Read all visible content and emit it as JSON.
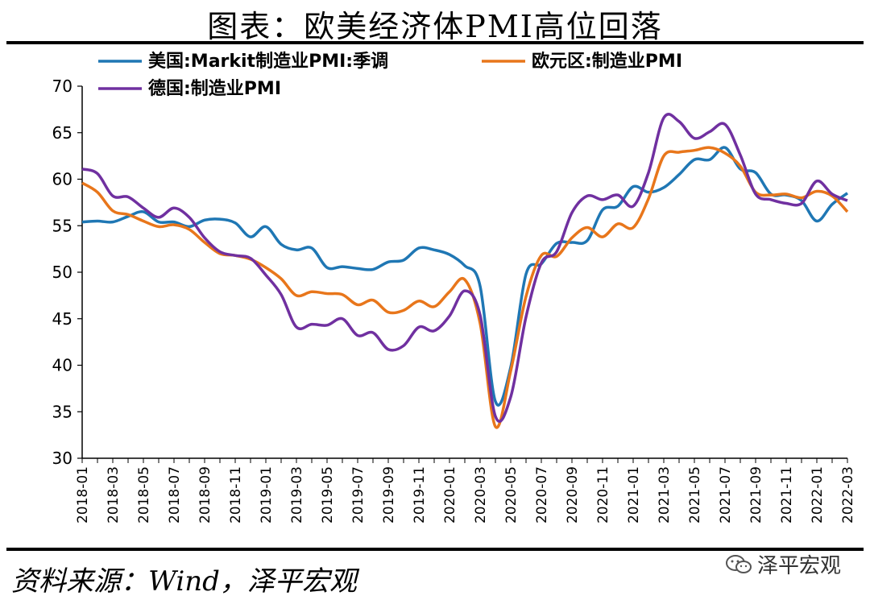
{
  "header": {
    "title": "图表：欧美经济体PMI高位回落"
  },
  "footer": {
    "source": "资料来源：Wind，泽平宏观",
    "brand": "泽平宏观",
    "brand_icon": "wechat-icon"
  },
  "chart_data": {
    "type": "line",
    "title": "图表：欧美经济体PMI高位回落",
    "xlabel": "",
    "ylabel": "",
    "ylim": [
      30,
      70
    ],
    "yticks": [
      30,
      35,
      40,
      45,
      50,
      55,
      60,
      65,
      70
    ],
    "grid": false,
    "legend_position": "top",
    "x": [
      "2018-01",
      "2018-02",
      "2018-03",
      "2018-04",
      "2018-05",
      "2018-06",
      "2018-07",
      "2018-08",
      "2018-09",
      "2018-10",
      "2018-11",
      "2018-12",
      "2019-01",
      "2019-02",
      "2019-03",
      "2019-04",
      "2019-05",
      "2019-06",
      "2019-07",
      "2019-08",
      "2019-09",
      "2019-10",
      "2019-11",
      "2019-12",
      "2020-01",
      "2020-02",
      "2020-03",
      "2020-04",
      "2020-05",
      "2020-06",
      "2020-07",
      "2020-08",
      "2020-09",
      "2020-10",
      "2020-11",
      "2020-12",
      "2021-01",
      "2021-02",
      "2021-03",
      "2021-04",
      "2021-05",
      "2021-06",
      "2021-07",
      "2021-08",
      "2021-09",
      "2021-10",
      "2021-11",
      "2021-12",
      "2022-01",
      "2022-02",
      "2022-03"
    ],
    "xtick_labels": [
      "2018-01",
      "2018-03",
      "2018-05",
      "2018-07",
      "2018-09",
      "2018-11",
      "2019-01",
      "2019-03",
      "2019-05",
      "2019-07",
      "2019-09",
      "2019-11",
      "2020-01",
      "2020-03",
      "2020-05",
      "2020-07",
      "2020-09",
      "2020-11",
      "2021-01",
      "2021-03",
      "2021-05",
      "2021-07",
      "2021-09",
      "2021-11",
      "2022-01",
      "2022-03"
    ],
    "series": [
      {
        "name": "美国:Markit制造业PMI:季调",
        "color": "#1f77b4",
        "values": [
          55.4,
          55.5,
          55.4,
          56.0,
          56.5,
          55.4,
          55.4,
          54.9,
          55.6,
          55.7,
          55.3,
          53.8,
          54.9,
          53.0,
          52.4,
          52.6,
          50.5,
          50.6,
          50.4,
          50.3,
          51.1,
          51.3,
          52.6,
          52.4,
          51.9,
          50.7,
          48.5,
          36.1,
          39.8,
          49.8,
          50.9,
          53.1,
          53.2,
          53.4,
          56.7,
          57.1,
          59.2,
          58.6,
          59.1,
          60.5,
          62.1,
          62.1,
          63.4,
          61.1,
          60.7,
          58.4,
          58.3,
          57.7,
          55.5,
          57.3,
          58.5
        ]
      },
      {
        "name": "欧元区:制造业PMI",
        "color": "#e8761b",
        "values": [
          59.6,
          58.6,
          56.6,
          56.2,
          55.5,
          54.9,
          55.1,
          54.6,
          53.2,
          52.0,
          51.8,
          51.4,
          50.5,
          49.3,
          47.5,
          47.9,
          47.7,
          47.6,
          46.5,
          47.0,
          45.7,
          45.9,
          46.9,
          46.3,
          47.9,
          49.2,
          44.5,
          33.4,
          39.4,
          47.4,
          51.8,
          51.7,
          53.7,
          54.8,
          53.8,
          55.2,
          54.8,
          57.9,
          62.5,
          62.9,
          63.1,
          63.4,
          62.8,
          61.4,
          58.6,
          58.3,
          58.4,
          58.0,
          58.7,
          58.2,
          56.5
        ]
      },
      {
        "name": "德国:制造业PMI",
        "color": "#7030a0",
        "values": [
          61.1,
          60.6,
          58.2,
          58.1,
          56.9,
          55.9,
          56.9,
          55.9,
          53.7,
          52.2,
          51.8,
          51.5,
          49.7,
          47.6,
          44.1,
          44.4,
          44.3,
          45.0,
          43.2,
          43.5,
          41.7,
          42.1,
          44.1,
          43.7,
          45.3,
          48.0,
          45.4,
          34.5,
          36.6,
          45.2,
          51.0,
          52.2,
          56.4,
          58.2,
          57.8,
          58.3,
          57.1,
          60.7,
          66.6,
          66.2,
          64.4,
          65.1,
          65.9,
          62.6,
          58.4,
          57.8,
          57.4,
          57.4,
          59.8,
          58.4,
          57.7
        ]
      }
    ]
  }
}
